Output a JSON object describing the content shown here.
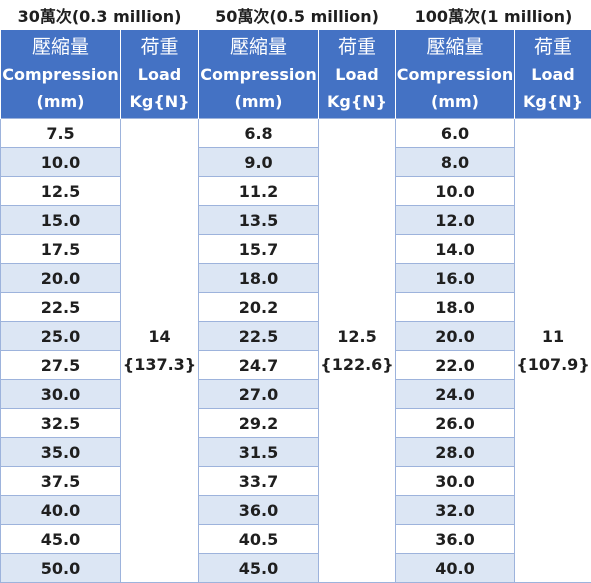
{
  "table": {
    "groups": [
      {
        "title": "30萬次(0.3 million)",
        "load_value": "14",
        "load_newton": "{137.3}",
        "compression": [
          "7.5",
          "10.0",
          "12.5",
          "15.0",
          "17.5",
          "20.0",
          "22.5",
          "25.0",
          "27.5",
          "30.0",
          "32.5",
          "35.0",
          "37.5",
          "40.0",
          "45.0",
          "50.0"
        ]
      },
      {
        "title": "50萬次(0.5 million)",
        "load_value": "12.5",
        "load_newton": "{122.6}",
        "compression": [
          "6.8",
          "9.0",
          "11.2",
          "13.5",
          "15.7",
          "18.0",
          "20.2",
          "22.5",
          "24.7",
          "27.0",
          "29.2",
          "31.5",
          "33.7",
          "36.0",
          "40.5",
          "45.0"
        ]
      },
      {
        "title": "100萬次(1 million)",
        "load_value": "11",
        "load_newton": "{107.9}",
        "compression": [
          "6.0",
          "8.0",
          "10.0",
          "12.0",
          "14.0",
          "16.0",
          "18.0",
          "20.0",
          "22.0",
          "24.0",
          "26.0",
          "28.0",
          "30.0",
          "32.0",
          "36.0",
          "40.0"
        ]
      }
    ],
    "compression_header": {
      "cjk": "壓縮量",
      "en": "Compression",
      "unit": "(mm)"
    },
    "load_header": {
      "cjk": "荷重",
      "en": "Load",
      "unit": "Kg{N}"
    }
  },
  "colors": {
    "header_bg": "#4472c4",
    "header_text": "#ffffff",
    "band_row": "#dce6f4",
    "grid_line": "#9db3dc",
    "body_text": "#1f1f1f"
  }
}
